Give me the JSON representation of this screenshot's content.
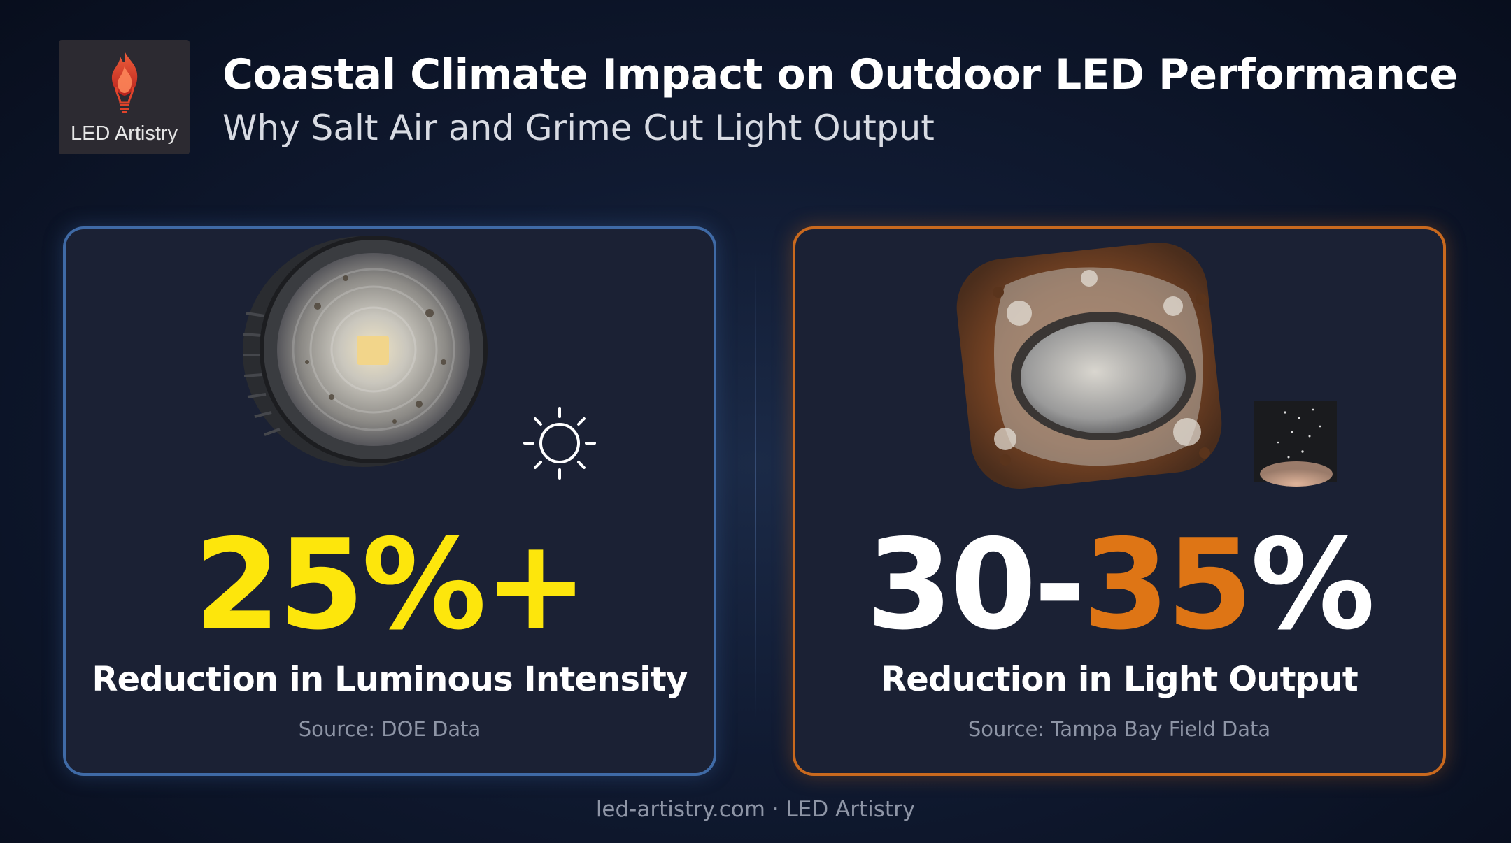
{
  "brand": {
    "logo_text": "LED Artistry",
    "logo_icon": "flame-bulb-icon",
    "accent_color": "#e0432b"
  },
  "header": {
    "title": "Coastal Climate Impact on Outdoor LED Performance",
    "subtitle": "Why Salt Air and Grime Cut Light Output"
  },
  "cards": [
    {
      "accent_color": "#3f6aa6",
      "image": "dirty-led-spotlight",
      "icon": "sun-icon",
      "stat": "25%+",
      "stat_color": "#fde60c",
      "caption": "Reduction in Luminous Intensity",
      "source": "Source: DOE Data"
    },
    {
      "accent_color": "#c9691e",
      "image": "corroded-outdoor-fixture",
      "icon": "salt-pile-icon",
      "stat_prefix": "30-",
      "stat_highlight": "35",
      "stat_suffix": "%",
      "stat_color": "#ffffff",
      "stat_highlight_color": "#de7515",
      "caption": "Reduction in Light Output",
      "source": "Source: Tampa Bay Field Data"
    }
  ],
  "footer": {
    "text": "led-artistry.com · LED Artistry"
  }
}
